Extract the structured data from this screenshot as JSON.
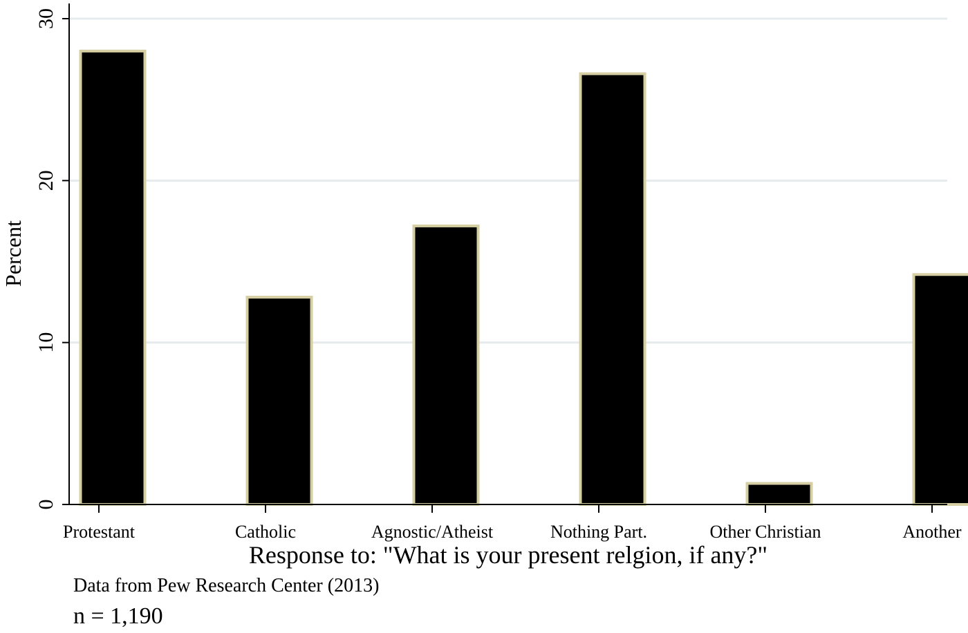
{
  "chart_data": {
    "type": "bar",
    "categories": [
      "Protestant",
      "Catholic",
      "Agnostic/Atheist",
      "Nothing Part.",
      "Other Christian",
      "Another"
    ],
    "values": [
      28.0,
      12.8,
      17.2,
      26.6,
      1.3,
      14.2
    ],
    "title": "",
    "xlabel": "Response to: \"What is your present relgion, if any?\"",
    "ylabel": "Percent",
    "ylim": [
      0,
      30
    ],
    "yticks": [
      "0",
      "10",
      "20",
      "30"
    ],
    "grid": true,
    "legend": "none",
    "colors": {
      "bar_fill": "#000000",
      "bar_outline": "#d6cfa3",
      "gridline": "#e6ecee",
      "axis": "#000000"
    }
  },
  "notes": {
    "source": "Data from Pew Research Center (2013)",
    "n": "n = 1,190"
  }
}
